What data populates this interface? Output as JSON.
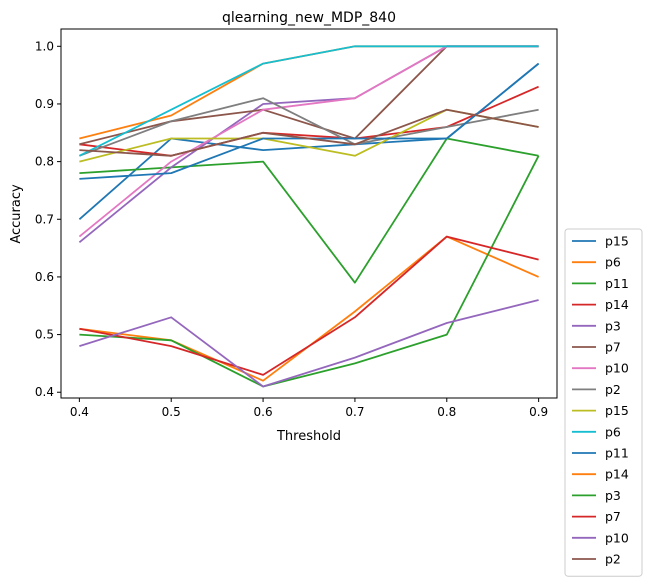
{
  "chart_data": {
    "type": "line",
    "title": "qlearning_new_MDP_840",
    "xlabel": "Threshold",
    "ylabel": "Accuracy",
    "x": [
      0.4,
      0.5,
      0.6,
      0.7,
      0.8,
      0.9
    ],
    "xticks": [
      "0.4",
      "0.5",
      "0.6",
      "0.7",
      "0.8",
      "0.9"
    ],
    "yticks": [
      "0.4",
      "0.5",
      "0.6",
      "0.7",
      "0.8",
      "0.9",
      "1.0"
    ],
    "xlim": [
      0.38,
      0.92
    ],
    "ylim": [
      0.39,
      1.03
    ],
    "grid": false,
    "legend_position": "outside-right-bottom",
    "series": [
      {
        "name": "p15",
        "color": "#1f77b4",
        "values": [
          0.7,
          0.84,
          0.82,
          0.83,
          0.84,
          0.97
        ]
      },
      {
        "name": "p6",
        "color": "#ff7f0e",
        "values": [
          0.84,
          0.88,
          0.97,
          1.0,
          1.0,
          1.0
        ]
      },
      {
        "name": "p11",
        "color": "#2ca02c",
        "values": [
          0.78,
          0.79,
          0.8,
          0.59,
          0.84,
          0.81
        ]
      },
      {
        "name": "p14",
        "color": "#d62728",
        "values": [
          0.83,
          0.81,
          0.85,
          0.84,
          0.86,
          0.93
        ]
      },
      {
        "name": "p3",
        "color": "#9467bd",
        "values": [
          0.66,
          0.79,
          0.9,
          0.91,
          1.0,
          1.0
        ]
      },
      {
        "name": "p7",
        "color": "#8c564b",
        "values": [
          0.83,
          0.87,
          0.89,
          0.84,
          1.0,
          1.0
        ]
      },
      {
        "name": "p10",
        "color": "#e377c2",
        "values": [
          0.67,
          0.8,
          0.89,
          0.91,
          1.0,
          1.0
        ]
      },
      {
        "name": "p2",
        "color": "#7f7f7f",
        "values": [
          0.81,
          0.87,
          0.91,
          0.83,
          0.86,
          0.89
        ]
      },
      {
        "name": "p15",
        "color": "#bcbd22",
        "values": [
          0.8,
          0.84,
          0.84,
          0.81,
          0.89,
          0.86
        ]
      },
      {
        "name": "p6",
        "color": "#17becf",
        "values": [
          0.81,
          0.89,
          0.97,
          1.0,
          1.0,
          1.0
        ]
      },
      {
        "name": "p11",
        "color": "#1f77b4",
        "values": [
          0.77,
          0.78,
          0.84,
          0.84,
          0.84,
          0.97
        ]
      },
      {
        "name": "p14",
        "color": "#ff7f0e",
        "values": [
          0.51,
          0.49,
          0.42,
          0.54,
          0.67,
          0.6
        ]
      },
      {
        "name": "p3",
        "color": "#2ca02c",
        "values": [
          0.5,
          0.49,
          0.41,
          0.45,
          0.5,
          0.81
        ]
      },
      {
        "name": "p7",
        "color": "#d62728",
        "values": [
          0.51,
          0.48,
          0.43,
          0.53,
          0.67,
          0.63
        ]
      },
      {
        "name": "p10",
        "color": "#9467bd",
        "values": [
          0.48,
          0.53,
          0.41,
          0.46,
          0.52,
          0.56
        ]
      },
      {
        "name": "p2",
        "color": "#8c564b",
        "values": [
          0.82,
          0.81,
          0.85,
          0.83,
          0.89,
          0.86
        ]
      }
    ]
  }
}
